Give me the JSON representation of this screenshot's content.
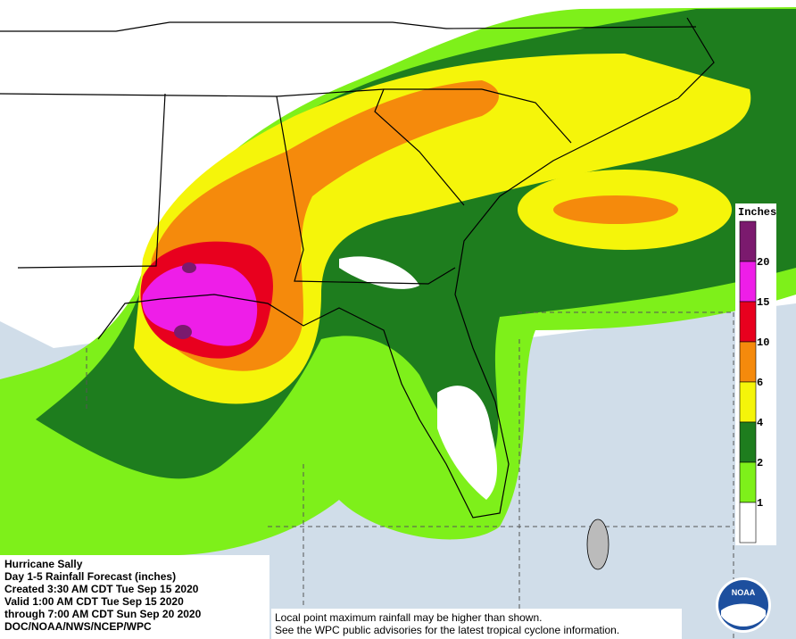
{
  "title_block": {
    "lines": [
      "Hurricane Sally",
      "Day 1-5 Rainfall Forecast (inches)",
      "Created 3:30 AM CDT Tue Sep 15 2020",
      "Valid 1:00 AM CDT Tue Sep 15 2020",
      "through 7:00 AM CDT Sun Sep 20 2020",
      "DOC/NOAA/NWS/NCEP/WPC"
    ]
  },
  "legend": {
    "title": "Inches",
    "labels": [
      20,
      15,
      10,
      6,
      4,
      2,
      1
    ],
    "colors": [
      "#7b1a6e",
      "#ee1ee8",
      "#e8001e",
      "#f58a0c",
      "#f5f50a",
      "#1e7d1e",
      "#7ef01a",
      "#ffffff"
    ]
  },
  "notes": [
    "Local point maximum rainfall may be higher than shown.",
    "See the WPC public advisories for the latest tropical cyclone information."
  ],
  "logo": "NOAA"
}
